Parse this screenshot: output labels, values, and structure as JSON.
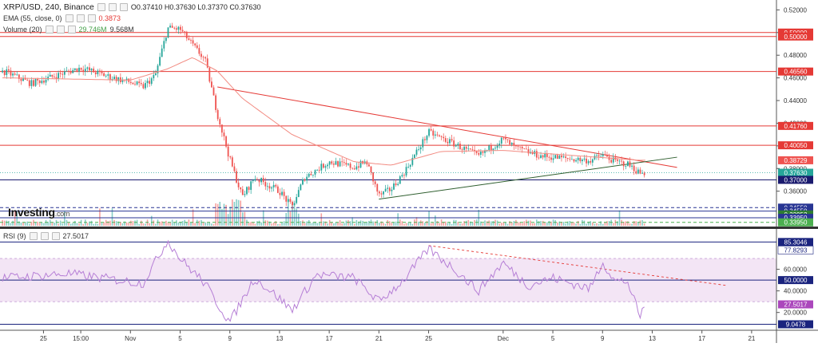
{
  "header": {
    "symbol": "XRP/USD, 240, Binance",
    "ohlc": "O0.37410 H0.37630 L0.37370 C0.37630",
    "ema_label": "EMA (55, close, 0)",
    "ema_value": "0.3873",
    "volume_label": "Volume (20)",
    "volume_ma": "29.746M",
    "volume_value": "9.568M",
    "rsi_label": "RSI (9)",
    "rsi_value": "27.5017"
  },
  "watermark": {
    "brand": "Investing",
    "domain": ".com"
  },
  "colors": {
    "up": "#26a69a",
    "down": "#ef5350",
    "ema": "#f28b82",
    "level_line": "#e53935",
    "support_line": "#1a237e",
    "rsi_line": "#b67fd6",
    "rsi_band": "#f3e5f5"
  },
  "chart_data": [
    {
      "type": "candlestick",
      "title": "XRP/USD, 240, Binance",
      "x_tick_labels": [
        "25",
        "15:00",
        "Nov",
        "5",
        "9",
        "13",
        "17",
        "21",
        "25",
        "Dec",
        "5",
        "9",
        "13",
        "17",
        "21"
      ],
      "y_tick_labels": [
        "0.52000",
        "0.50000",
        "0.48000",
        "0.46000",
        "0.44000",
        "0.42000",
        "0.40000",
        "0.38000",
        "0.36000"
      ],
      "ylim": [
        0.3295,
        0.5245
      ],
      "price_anchors": [
        {
          "x": "Oct 22",
          "y": 0.465
        },
        {
          "x": "Oct 24",
          "y": 0.455
        },
        {
          "x": "Oct 26",
          "y": 0.462
        },
        {
          "x": "Oct 28",
          "y": 0.469
        },
        {
          "x": "Oct 30",
          "y": 0.462
        },
        {
          "x": "Nov 1",
          "y": 0.456
        },
        {
          "x": "Nov 2",
          "y": 0.452
        },
        {
          "x": "Nov 3",
          "y": 0.462
        },
        {
          "x": "Nov 4",
          "y": 0.504
        },
        {
          "x": "Nov 5",
          "y": 0.503
        },
        {
          "x": "Nov 6",
          "y": 0.489
        },
        {
          "x": "Nov 7",
          "y": 0.476
        },
        {
          "x": "Nov 8",
          "y": 0.428
        },
        {
          "x": "Nov 9",
          "y": 0.388
        },
        {
          "x": "Nov 10",
          "y": 0.355
        },
        {
          "x": "Nov 11",
          "y": 0.372
        },
        {
          "x": "Nov 13",
          "y": 0.36
        },
        {
          "x": "Nov 14",
          "y": 0.346
        },
        {
          "x": "Nov 15",
          "y": 0.372
        },
        {
          "x": "Nov 17",
          "y": 0.386
        },
        {
          "x": "Nov 19",
          "y": 0.381
        },
        {
          "x": "Nov 20",
          "y": 0.386
        },
        {
          "x": "Nov 21",
          "y": 0.356
        },
        {
          "x": "Nov 22",
          "y": 0.362
        },
        {
          "x": "Nov 23",
          "y": 0.376
        },
        {
          "x": "Nov 25",
          "y": 0.412
        },
        {
          "x": "Nov 27",
          "y": 0.402
        },
        {
          "x": "Nov 29",
          "y": 0.391
        },
        {
          "x": "Dec 1",
          "y": 0.406
        },
        {
          "x": "Dec 2",
          "y": 0.398
        },
        {
          "x": "Dec 4",
          "y": 0.391
        },
        {
          "x": "Dec 6",
          "y": 0.389
        },
        {
          "x": "Dec 8",
          "y": 0.387
        },
        {
          "x": "Dec 9",
          "y": 0.392
        },
        {
          "x": "Dec 10",
          "y": 0.386
        },
        {
          "x": "Dec 11",
          "y": 0.384
        },
        {
          "x": "Dec 12",
          "y": 0.376
        }
      ],
      "ema_anchors": [
        {
          "x": "Oct 22",
          "y": 0.46
        },
        {
          "x": "Nov 1",
          "y": 0.458
        },
        {
          "x": "Nov 4",
          "y": 0.468
        },
        {
          "x": "Nov 6",
          "y": 0.478
        },
        {
          "x": "Nov 8",
          "y": 0.466
        },
        {
          "x": "Nov 10",
          "y": 0.442
        },
        {
          "x": "Nov 14",
          "y": 0.41
        },
        {
          "x": "Nov 19",
          "y": 0.386
        },
        {
          "x": "Nov 22",
          "y": 0.383
        },
        {
          "x": "Nov 26",
          "y": 0.395
        },
        {
          "x": "Dec 1",
          "y": 0.396
        },
        {
          "x": "Dec 6",
          "y": 0.392
        },
        {
          "x": "Dec 12",
          "y": 0.3873
        }
      ],
      "horizontal_levels": [
        {
          "label": "0.50000",
          "value": 0.5,
          "color": "#e53935",
          "style": "solid"
        },
        {
          "label": "0.50000",
          "value": 0.4965,
          "color": "#e53935",
          "style": "solid"
        },
        {
          "label": "0.46560",
          "value": 0.4656,
          "color": "#e53935",
          "style": "solid"
        },
        {
          "label": "0.41760",
          "value": 0.4176,
          "color": "#e53935",
          "style": "solid"
        },
        {
          "label": "0.40050",
          "value": 0.4005,
          "color": "#e53935",
          "style": "solid"
        },
        {
          "label": "0.38729",
          "value": 0.38729,
          "color": "#ef5350",
          "style": "none"
        },
        {
          "label": "0.37630",
          "value": 0.3763,
          "color": "#26a69a",
          "style": "dotted"
        },
        {
          "label": "0.37000",
          "value": 0.37,
          "color": "#1a1a6e",
          "style": "solid"
        },
        {
          "label": "0.34550",
          "value": 0.3455,
          "color": "#283593",
          "style": "dashed"
        },
        {
          "label": "0.34550",
          "value": 0.3424,
          "color": "#283593",
          "style": "solid"
        },
        {
          "label": "0.33952",
          "value": 0.3395,
          "color": "#2e7d32",
          "style": "none"
        },
        {
          "label": "0.33950",
          "value": 0.3365,
          "color": "#283593",
          "style": "solid"
        },
        {
          "label": "0.33950",
          "value": 0.3325,
          "color": "#4caf50",
          "style": "dashed"
        }
      ],
      "trendlines": [
        {
          "name": "resistance",
          "from": {
            "x": "Nov 8",
            "y": 0.452
          },
          "to": {
            "x": "Dec 15",
            "y": 0.381
          },
          "color": "#e53935"
        },
        {
          "name": "support",
          "from": {
            "x": "Nov 21",
            "y": 0.353
          },
          "to": {
            "x": "Dec 15",
            "y": 0.39
          },
          "color": "#2e5e2e"
        }
      ]
    },
    {
      "type": "line",
      "title": "RSI (9)",
      "ylim": [
        5,
        90
      ],
      "current": 27.5017,
      "levels": [
        {
          "label": "85.3046",
          "value": 85.3046,
          "color": "#1a237e",
          "style": "solid"
        },
        {
          "label": "77.8293",
          "value": 77.8293,
          "color": "#ffffff",
          "style": "none"
        },
        {
          "label": "60.0000",
          "value": 60,
          "color": "#333",
          "style": "tick"
        },
        {
          "label": "50.0000",
          "value": 50,
          "color": "#1a237e",
          "style": "solid"
        },
        {
          "label": "40.0000",
          "value": 40,
          "color": "#333",
          "style": "tick"
        },
        {
          "label": "27.5017",
          "value": 27.5017,
          "color": "#ab47bc",
          "style": "none"
        },
        {
          "label": "20.0000",
          "value": 20,
          "color": "#333",
          "style": "tick"
        },
        {
          "label": "9.0478",
          "value": 9.0478,
          "color": "#1a237e",
          "style": "solid"
        }
      ],
      "band": [
        30,
        70
      ],
      "rsi_anchors": [
        {
          "x": "Oct 22",
          "y": 52
        },
        {
          "x": "Oct 27",
          "y": 56
        },
        {
          "x": "Nov 2",
          "y": 47
        },
        {
          "x": "Nov 4",
          "y": 87
        },
        {
          "x": "Nov 5",
          "y": 70
        },
        {
          "x": "Nov 7",
          "y": 47
        },
        {
          "x": "Nov 8",
          "y": 28
        },
        {
          "x": "Nov 9",
          "y": 11
        },
        {
          "x": "Nov 11",
          "y": 52
        },
        {
          "x": "Nov 13",
          "y": 33
        },
        {
          "x": "Nov 14",
          "y": 22
        },
        {
          "x": "Nov 16",
          "y": 55
        },
        {
          "x": "Nov 19",
          "y": 52
        },
        {
          "x": "Nov 21",
          "y": 30
        },
        {
          "x": "Nov 23",
          "y": 50
        },
        {
          "x": "Nov 25",
          "y": 79
        },
        {
          "x": "Nov 27",
          "y": 61
        },
        {
          "x": "Nov 29",
          "y": 40
        },
        {
          "x": "Dec 1",
          "y": 66
        },
        {
          "x": "Dec 3",
          "y": 45
        },
        {
          "x": "Dec 5",
          "y": 52
        },
        {
          "x": "Dec 8",
          "y": 42
        },
        {
          "x": "Dec 9",
          "y": 67
        },
        {
          "x": "Dec 10",
          "y": 49
        },
        {
          "x": "Dec 11",
          "y": 49
        },
        {
          "x": "Dec 12",
          "y": 16
        },
        {
          "x": "Dec 12 12:00",
          "y": 27.5
        }
      ],
      "trendline": {
        "from": {
          "x": "Nov 25",
          "y": 82
        },
        "to": {
          "x": "Dec 19",
          "y": 45
        },
        "color": "#e53935",
        "style": "dashed"
      }
    }
  ]
}
